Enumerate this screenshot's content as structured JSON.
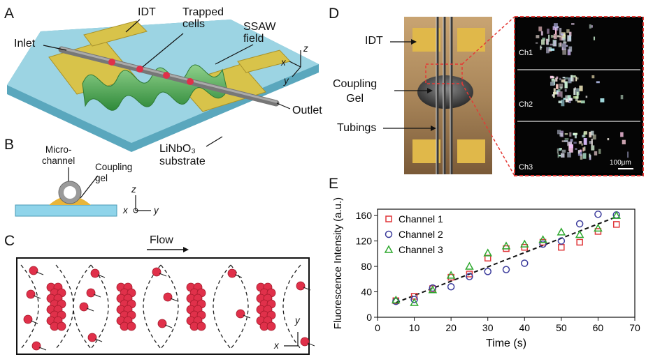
{
  "panels": {
    "a": "A",
    "b": "B",
    "c": "C",
    "d": "D",
    "e": "E"
  },
  "panelA": {
    "idt": "IDT",
    "trapped": "Trapped\ncells",
    "inlet": "Inlet",
    "ssaw": "SSAW\nfield",
    "outlet": "Outlet",
    "substrate": "LiNbO₃\nsubstrate",
    "axis_z": "z",
    "axis_x": "x",
    "axis_y": "y"
  },
  "panelB": {
    "microchannel": "Micro-\nchannel",
    "gel": "Coupling\ngel",
    "axis_z": "z",
    "axis_x": "x",
    "axis_y": "y"
  },
  "panelC": {
    "flow": "Flow",
    "axis_y": "y",
    "axis_x": "x"
  },
  "panelD": {
    "idt": "IDT",
    "gel": "Coupling\nGel",
    "tubings": "Tubings",
    "ch1": "Ch1",
    "ch2": "Ch2",
    "ch3": "Ch3",
    "scale": "100μm"
  },
  "colors": {
    "ch1": "#e0373a",
    "ch2": "#3c3c9c",
    "ch3": "#2fa82f"
  },
  "chart_data": {
    "type": "scatter",
    "xlabel": "Time (s)",
    "ylabel": "Fluorescence Intensity (a.u.)",
    "xlim": [
      0,
      70
    ],
    "ylim": [
      0,
      170
    ],
    "xticks": [
      0,
      10,
      20,
      30,
      40,
      50,
      60,
      70
    ],
    "yticks": [
      0,
      40,
      80,
      120,
      160
    ],
    "legend_position": "top-left",
    "series": [
      {
        "name": "Channel 1",
        "marker": "square",
        "color": "#e0373a",
        "x": [
          5,
          10,
          15,
          20,
          25,
          30,
          35,
          40,
          45,
          50,
          55,
          60,
          65
        ],
        "y": [
          26,
          33,
          45,
          63,
          68,
          93,
          108,
          110,
          118,
          110,
          118,
          135,
          146
        ]
      },
      {
        "name": "Channel 2",
        "marker": "circle",
        "color": "#3c3c9c",
        "x": [
          5,
          10,
          15,
          20,
          25,
          30,
          35,
          40,
          45,
          50,
          55,
          60,
          65
        ],
        "y": [
          25,
          28,
          46,
          48,
          64,
          72,
          75,
          85,
          115,
          120,
          147,
          162,
          161
        ]
      },
      {
        "name": "Channel 3",
        "marker": "triangle",
        "color": "#2fa82f",
        "x": [
          5,
          10,
          15,
          20,
          25,
          30,
          35,
          40,
          45,
          50,
          55,
          60,
          65
        ],
        "y": [
          27,
          23,
          43,
          66,
          80,
          101,
          112,
          115,
          122,
          134,
          130,
          140,
          160
        ]
      }
    ],
    "fit": {
      "name": "linear-fit",
      "x": [
        5,
        65
      ],
      "y": [
        23,
        158
      ]
    }
  }
}
